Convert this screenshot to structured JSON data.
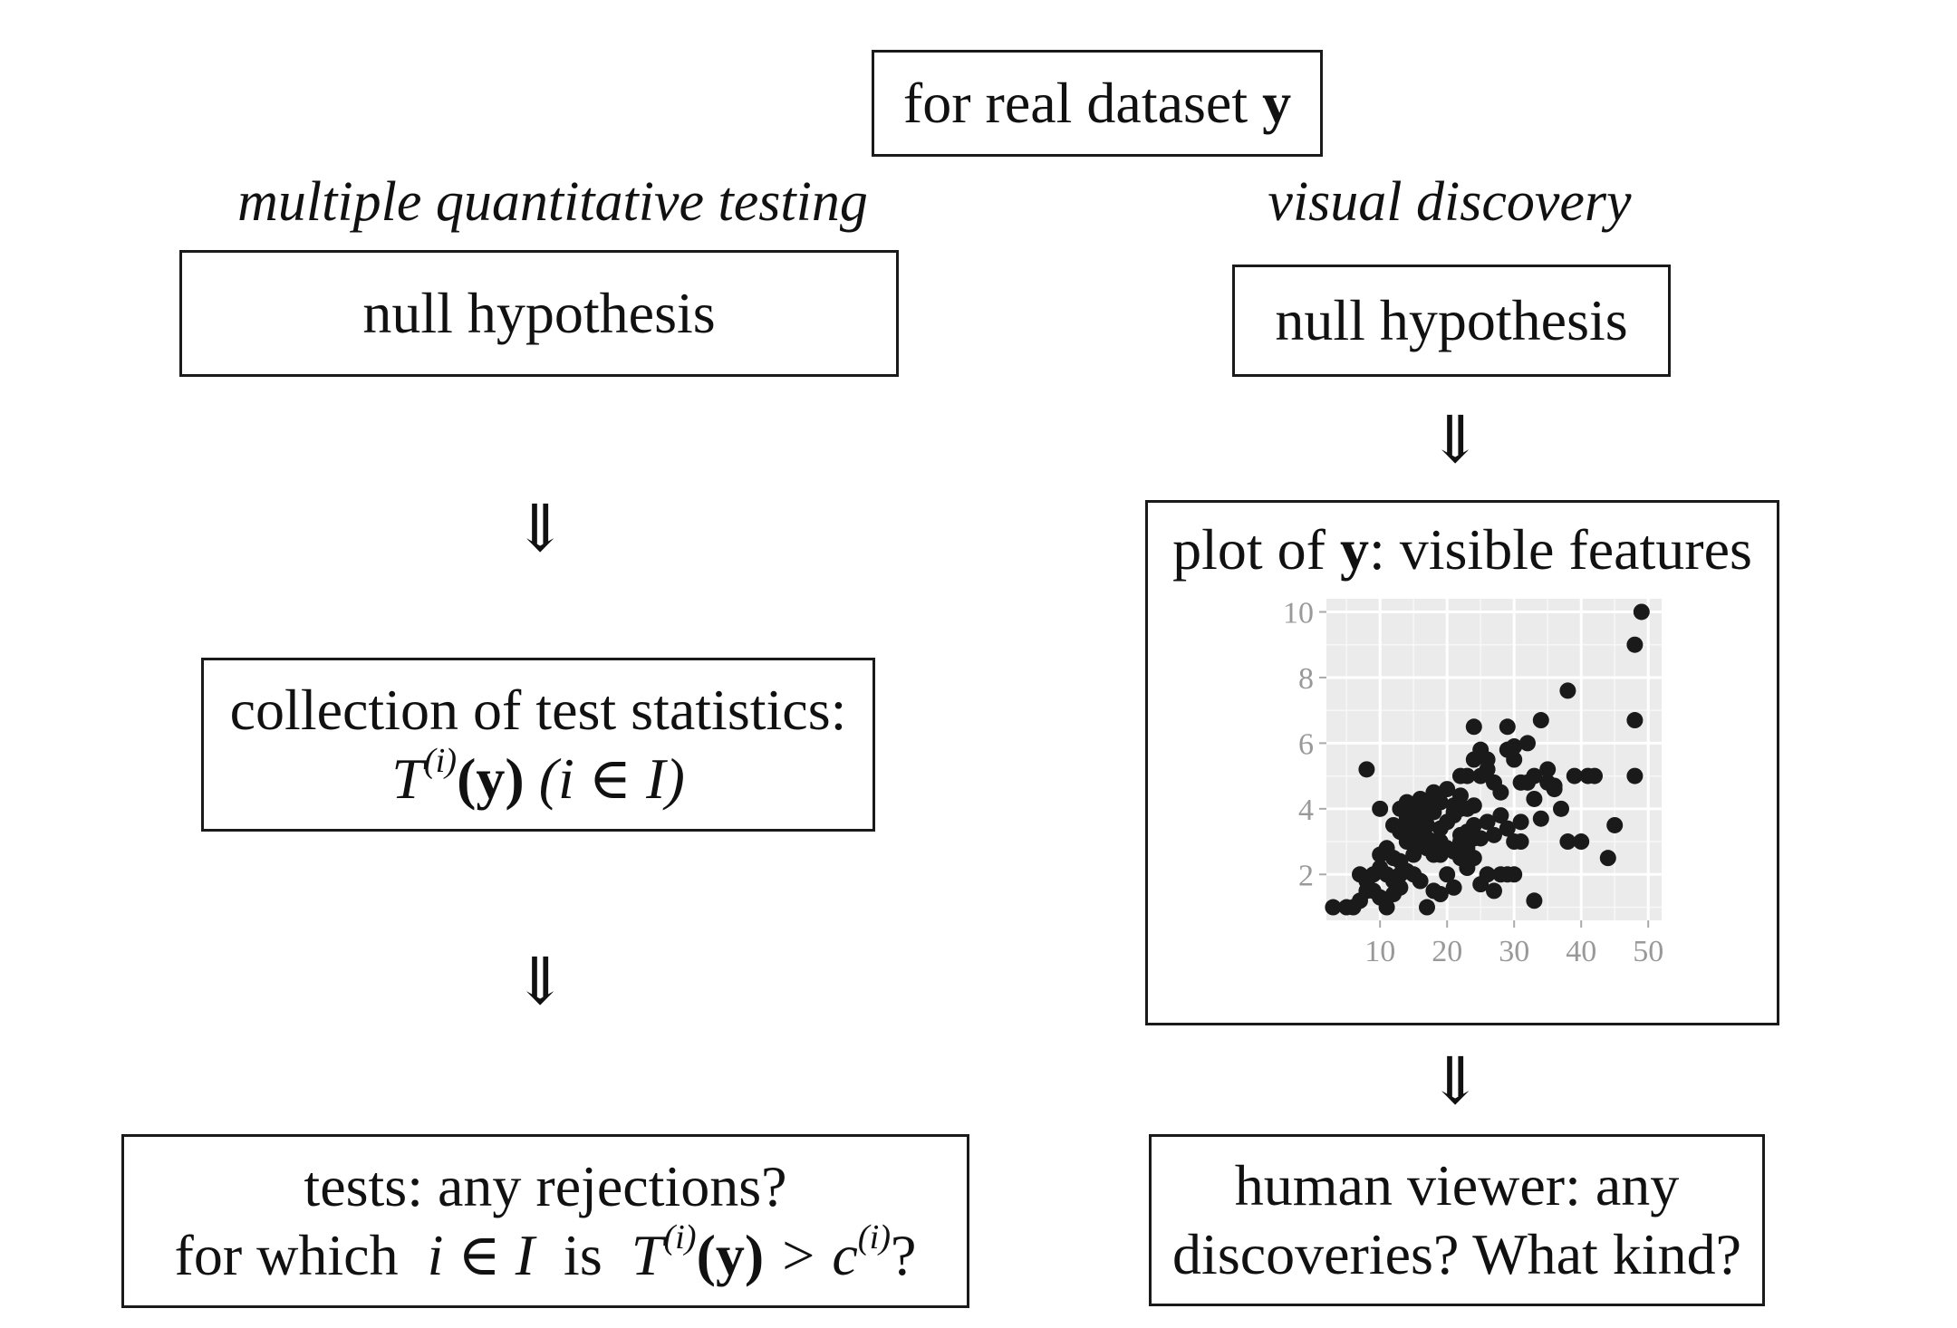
{
  "top": {
    "prefix": "for real dataset ",
    "var": "y"
  },
  "left": {
    "heading": "multiple quantitative testing",
    "null_box": "null hypothesis",
    "arrow1": "⇓",
    "stats_line1": "collection of test statistics:",
    "stats_T": "T",
    "stats_sup": "(i)",
    "stats_arg": "(y)",
    "stats_idx": "(i ∈ I)",
    "arrow2": "⇓",
    "tests_line1": "tests: any rejections?",
    "tests_for": "for which",
    "tests_cond": "i ∈ I",
    "tests_is": "is",
    "tests_T": "T",
    "tests_sup": "(i)",
    "tests_arg": "(y)",
    "tests_gt": " > c",
    "tests_csup": "(i)",
    "tests_q": "?"
  },
  "right": {
    "heading": "visual discovery",
    "null_box": "null hypothesis",
    "arrow1": "⇓",
    "plot_prefix": "plot of ",
    "plot_var": "y",
    "plot_suffix": ": visible features",
    "arrow2": "⇓",
    "human_line1": "human viewer: any",
    "human_line2": "discoveries? What kind?"
  },
  "chart_data": {
    "type": "scatter",
    "xlim": [
      2,
      52
    ],
    "ylim": [
      0.6,
      10.4
    ],
    "xticks": [
      10,
      20,
      30,
      40,
      50
    ],
    "yticks": [
      2,
      4,
      6,
      8,
      10
    ],
    "grid": true,
    "panel_color": "#ebebeb",
    "point_color": "#1a1a1a",
    "points": [
      [
        3,
        1
      ],
      [
        5,
        1
      ],
      [
        6,
        1
      ],
      [
        7,
        1.2
      ],
      [
        8,
        1.5
      ],
      [
        9,
        1.5
      ],
      [
        10,
        1.3
      ],
      [
        11,
        1
      ],
      [
        12,
        1.4
      ],
      [
        13,
        1.6
      ],
      [
        7,
        2
      ],
      [
        8,
        1.8
      ],
      [
        9,
        2
      ],
      [
        10,
        2.2
      ],
      [
        11,
        2
      ],
      [
        12,
        1.8
      ],
      [
        13,
        2
      ],
      [
        14,
        2.1
      ],
      [
        15,
        2
      ],
      [
        16,
        1.8
      ],
      [
        17,
        1
      ],
      [
        18,
        1.5
      ],
      [
        19,
        1.4
      ],
      [
        20,
        2
      ],
      [
        21,
        1.6
      ],
      [
        22,
        2.5
      ],
      [
        23,
        2.2
      ],
      [
        24,
        2.5
      ],
      [
        25,
        1.7
      ],
      [
        26,
        2
      ],
      [
        10,
        2.6
      ],
      [
        11,
        2.8
      ],
      [
        12,
        2.5
      ],
      [
        13,
        2.4
      ],
      [
        14,
        3
      ],
      [
        15,
        2.6
      ],
      [
        16,
        2.9
      ],
      [
        17,
        2.8
      ],
      [
        18,
        3
      ],
      [
        19,
        2.6
      ],
      [
        12,
        3.5
      ],
      [
        13,
        3.3
      ],
      [
        14,
        3.7
      ],
      [
        15,
        3.4
      ],
      [
        16,
        3.8
      ],
      [
        17,
        3.5
      ],
      [
        18,
        3.9
      ],
      [
        19,
        3.4
      ],
      [
        20,
        3.6
      ],
      [
        21,
        3.8
      ],
      [
        13,
        4
      ],
      [
        14,
        4.2
      ],
      [
        15,
        4
      ],
      [
        16,
        4.3
      ],
      [
        17,
        4.1
      ],
      [
        18,
        4.5
      ],
      [
        19,
        4.2
      ],
      [
        20,
        4.6
      ],
      [
        21,
        4.1
      ],
      [
        22,
        4.4
      ],
      [
        22,
        3
      ],
      [
        23,
        3.3
      ],
      [
        24,
        3.5
      ],
      [
        25,
        3.1
      ],
      [
        26,
        3.6
      ],
      [
        27,
        3.2
      ],
      [
        28,
        3.8
      ],
      [
        29,
        3.4
      ],
      [
        30,
        3
      ],
      [
        31,
        3.6
      ],
      [
        22,
        5
      ],
      [
        23,
        5
      ],
      [
        24,
        5.5
      ],
      [
        25,
        5
      ],
      [
        26,
        5.2
      ],
      [
        27,
        4.8
      ],
      [
        28,
        4.5
      ],
      [
        29,
        5.8
      ],
      [
        30,
        5.5
      ],
      [
        31,
        4.8
      ],
      [
        24,
        6.5
      ],
      [
        25,
        5.8
      ],
      [
        26,
        5.5
      ],
      [
        29,
        6.5
      ],
      [
        30,
        5.9
      ],
      [
        32,
        6
      ],
      [
        33,
        5
      ],
      [
        34,
        6.7
      ],
      [
        35,
        4.8
      ],
      [
        36,
        4.7
      ],
      [
        8,
        5.2
      ],
      [
        10,
        4
      ],
      [
        32,
        4.8
      ],
      [
        33,
        4.3
      ],
      [
        34,
        3.7
      ],
      [
        35,
        5.2
      ],
      [
        36,
        4.6
      ],
      [
        37,
        4
      ],
      [
        38,
        3
      ],
      [
        39,
        5
      ],
      [
        40,
        3
      ],
      [
        41,
        5
      ],
      [
        42,
        5
      ],
      [
        38,
        7.6
      ],
      [
        48,
        9
      ],
      [
        49,
        10
      ],
      [
        48,
        6.7
      ],
      [
        48,
        5
      ],
      [
        45,
        3.5
      ],
      [
        44,
        2.5
      ],
      [
        33,
        1.2
      ],
      [
        27,
        1.5
      ],
      [
        28,
        2
      ],
      [
        29,
        2
      ],
      [
        30,
        2
      ],
      [
        31,
        3
      ],
      [
        21,
        3.9
      ],
      [
        22,
        4
      ],
      [
        23,
        4
      ],
      [
        24,
        4.1
      ],
      [
        15,
        3
      ],
      [
        16,
        3.2
      ],
      [
        17,
        3.1
      ],
      [
        18,
        2.6
      ],
      [
        19,
        3
      ],
      [
        20,
        2.8
      ],
      [
        21,
        2.7
      ],
      [
        22,
        3.2
      ],
      [
        23,
        2.8
      ],
      [
        24,
        3.1
      ]
    ]
  }
}
